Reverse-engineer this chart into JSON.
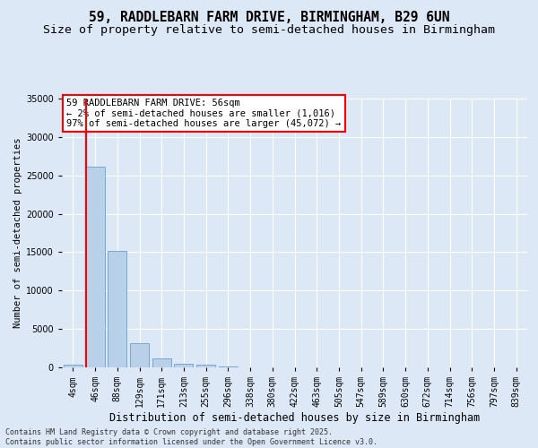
{
  "title": "59, RADDLEBARN FARM DRIVE, BIRMINGHAM, B29 6UN",
  "subtitle": "Size of property relative to semi-detached houses in Birmingham",
  "xlabel": "Distribution of semi-detached houses by size in Birmingham",
  "ylabel": "Number of semi-detached properties",
  "categories": [
    "4sqm",
    "46sqm",
    "88sqm",
    "129sqm",
    "171sqm",
    "213sqm",
    "255sqm",
    "296sqm",
    "338sqm",
    "380sqm",
    "422sqm",
    "463sqm",
    "505sqm",
    "547sqm",
    "589sqm",
    "630sqm",
    "672sqm",
    "714sqm",
    "756sqm",
    "797sqm",
    "839sqm"
  ],
  "values": [
    400,
    26100,
    15200,
    3200,
    1200,
    500,
    350,
    150,
    0,
    0,
    0,
    0,
    0,
    0,
    0,
    0,
    0,
    0,
    0,
    0,
    0
  ],
  "bar_color": "#b8d0e8",
  "bar_edge_color": "#6aa0cc",
  "vline_color": "red",
  "vline_x": 0.58,
  "annotation_text": "59 RADDLEBARN FARM DRIVE: 56sqm\n← 2% of semi-detached houses are smaller (1,016)\n97% of semi-detached houses are larger (45,072) →",
  "ylim": [
    0,
    35000
  ],
  "yticks": [
    0,
    5000,
    10000,
    15000,
    20000,
    25000,
    30000,
    35000
  ],
  "bg_color": "#dce8f5",
  "plot_bg_color": "#dce8f5",
  "footer": "Contains HM Land Registry data © Crown copyright and database right 2025.\nContains public sector information licensed under the Open Government Licence v3.0.",
  "title_fontsize": 10.5,
  "subtitle_fontsize": 9.5,
  "xlabel_fontsize": 8.5,
  "ylabel_fontsize": 7.5,
  "tick_fontsize": 7,
  "annot_fontsize": 7.5,
  "footer_fontsize": 6
}
